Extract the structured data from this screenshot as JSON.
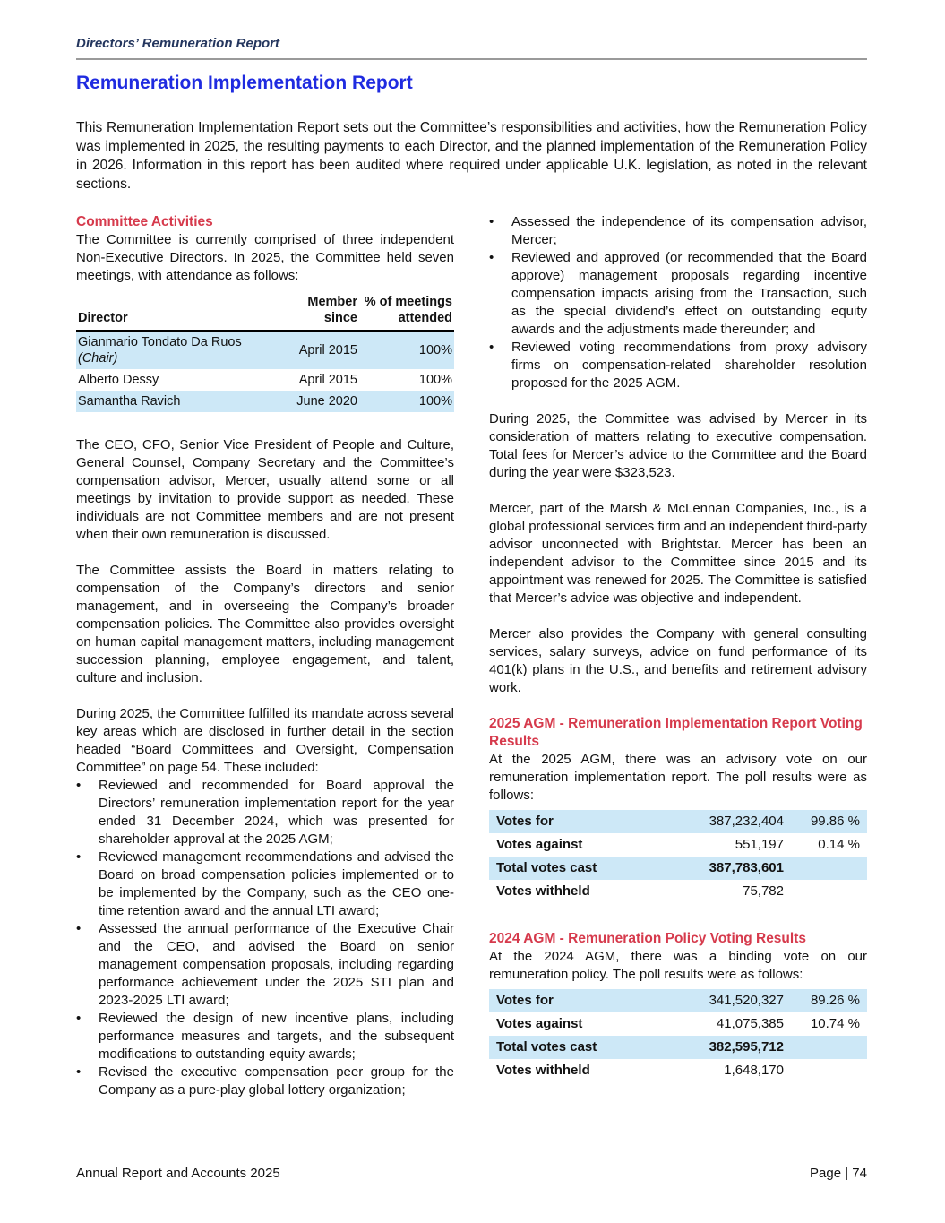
{
  "document": {
    "eyebrow": "Directors’ Remuneration Report",
    "title": "Remuneration Implementation Report",
    "intro": "This Remuneration Implementation Report sets out the Committee’s responsibilities and activities, how the Remuneration Policy was implemented in 2025, the resulting payments to each Director, and the planned implementation of the Remuneration Policy in 2026. Information in this report has been audited where required under applicable U.K. legislation, as noted in the relevant sections.",
    "footer": {
      "left": "Annual Report and Accounts 2025",
      "right": "Page | 74"
    }
  },
  "colors": {
    "title_blue": "#1F2BE0",
    "eyebrow_navy": "#24365E",
    "heading_red": "#D63A4C",
    "row_highlight_blue": "#CDE8F7"
  },
  "committee": {
    "heading": "Committee Activities",
    "intro": "The Committee is currently comprised of three independent Non-Executive Directors. In 2025, the Committee held seven meetings, with attendance as follows:",
    "attendance": {
      "headers": {
        "director": "Director",
        "member_since": "Member since",
        "attended": "% of meetings attended"
      },
      "rows": [
        {
          "director": "Gianmario Tondato Da Ruos ",
          "chair_note": "(Chair)",
          "member_since": "April 2015",
          "attended": "100%"
        },
        {
          "director": "Alberto Dessy",
          "chair_note": "",
          "member_since": "April 2015",
          "attended": "100%"
        },
        {
          "director": "Samantha Ravich",
          "chair_note": "",
          "member_since": "June 2020",
          "attended": "100%"
        }
      ]
    },
    "para_attendees": "The CEO, CFO, Senior Vice President of People and Culture, General Counsel, Company Secretary and the Committee’s compensation advisor, Mercer, usually attend some or all meetings by invitation to provide support as needed. These individuals are not Committee members and are not present when their own remuneration is discussed.",
    "para_role": "The Committee assists the Board in matters relating to compensation of the Company’s directors and senior management, and in overseeing the Company’s broader compensation policies. The Committee also provides oversight on human capital management matters, including management succession planning, employee engagement, and talent, culture and inclusion.",
    "para_mandate": "During 2025, the Committee fulfilled its mandate across several key areas which are disclosed in further detail in the section headed “Board Committees and Oversight, Compensation Committee” on page 54. These included:",
    "bullet_marker": "•",
    "bullets_left": [
      "Reviewed and recommended for Board approval the Directors’ remuneration implementation report for the year ended 31 December 2024, which was presented for shareholder approval at the 2025 AGM;",
      "Reviewed management recommendations and advised the Board on broad compensation policies implemented or to be implemented by the Company, such as the CEO one-time retention award and the annual LTI award;",
      "Assessed the annual performance of the Executive Chair and the CEO, and advised the Board on senior management compensation proposals, including regarding performance achievement under the 2025 STI plan and 2023-2025 LTI award;",
      "Reviewed the design of new incentive plans, including performance measures and targets, and the subsequent modifications to outstanding equity awards;",
      "Revised the executive compensation peer group for the Company as a pure-play global lottery organization;"
    ],
    "bullets_right": [
      "Assessed the independence of its compensation advisor, Mercer;",
      "Reviewed and approved (or recommended that the Board approve) management proposals regarding incentive compensation impacts arising from the Transaction, such as the special dividend’s effect on outstanding equity awards and the adjustments made thereunder; and",
      "Reviewed voting recommendations from proxy advisory firms on compensation-related shareholder resolution proposed for the 2025 AGM."
    ]
  },
  "advisor": {
    "para_fees": "During 2025, the Committee was advised by Mercer in its consideration of matters relating to executive compensation. Total fees for Mercer’s advice to the Committee and the Board during the year were $323,523.",
    "para_mercer": "Mercer, part of the Marsh & McLennan Companies, Inc., is a global professional services firm and an independent third-party advisor unconnected with Brightstar. Mercer has been an independent advisor to the Committee since 2015 and its appointment was renewed for 2025. The Committee is satisfied that Mercer’s advice was objective and independent.",
    "para_services": "Mercer also provides the Company with general consulting services, salary surveys, advice on fund performance of its 401(k) plans in the U.S., and benefits and retirement advisory work."
  },
  "agm_2025": {
    "heading": "2025 AGM - Remuneration Implementation Report Voting Results",
    "intro": "At the 2025 AGM, there was an advisory vote on our remuneration implementation report. The poll results were as follows:",
    "rows": [
      {
        "label": "Votes for",
        "value": "387,232,404",
        "pct": "99.86 %"
      },
      {
        "label": "Votes against",
        "value": "551,197",
        "pct": "0.14 %"
      },
      {
        "label": "Total votes cast",
        "value": "387,783,601",
        "pct": ""
      },
      {
        "label": "Votes withheld",
        "value": "75,782",
        "pct": ""
      }
    ]
  },
  "agm_2024": {
    "heading": "2024 AGM - Remuneration Policy Voting Results",
    "intro": "At the 2024 AGM, there was a binding vote on our remuneration policy. The poll results were as follows:",
    "rows": [
      {
        "label": "Votes for",
        "value": "341,520,327",
        "pct": "89.26 %"
      },
      {
        "label": "Votes against",
        "value": "41,075,385",
        "pct": "10.74 %"
      },
      {
        "label": "Total votes cast",
        "value": "382,595,712",
        "pct": ""
      },
      {
        "label": "Votes withheld",
        "value": "1,648,170",
        "pct": ""
      }
    ]
  }
}
